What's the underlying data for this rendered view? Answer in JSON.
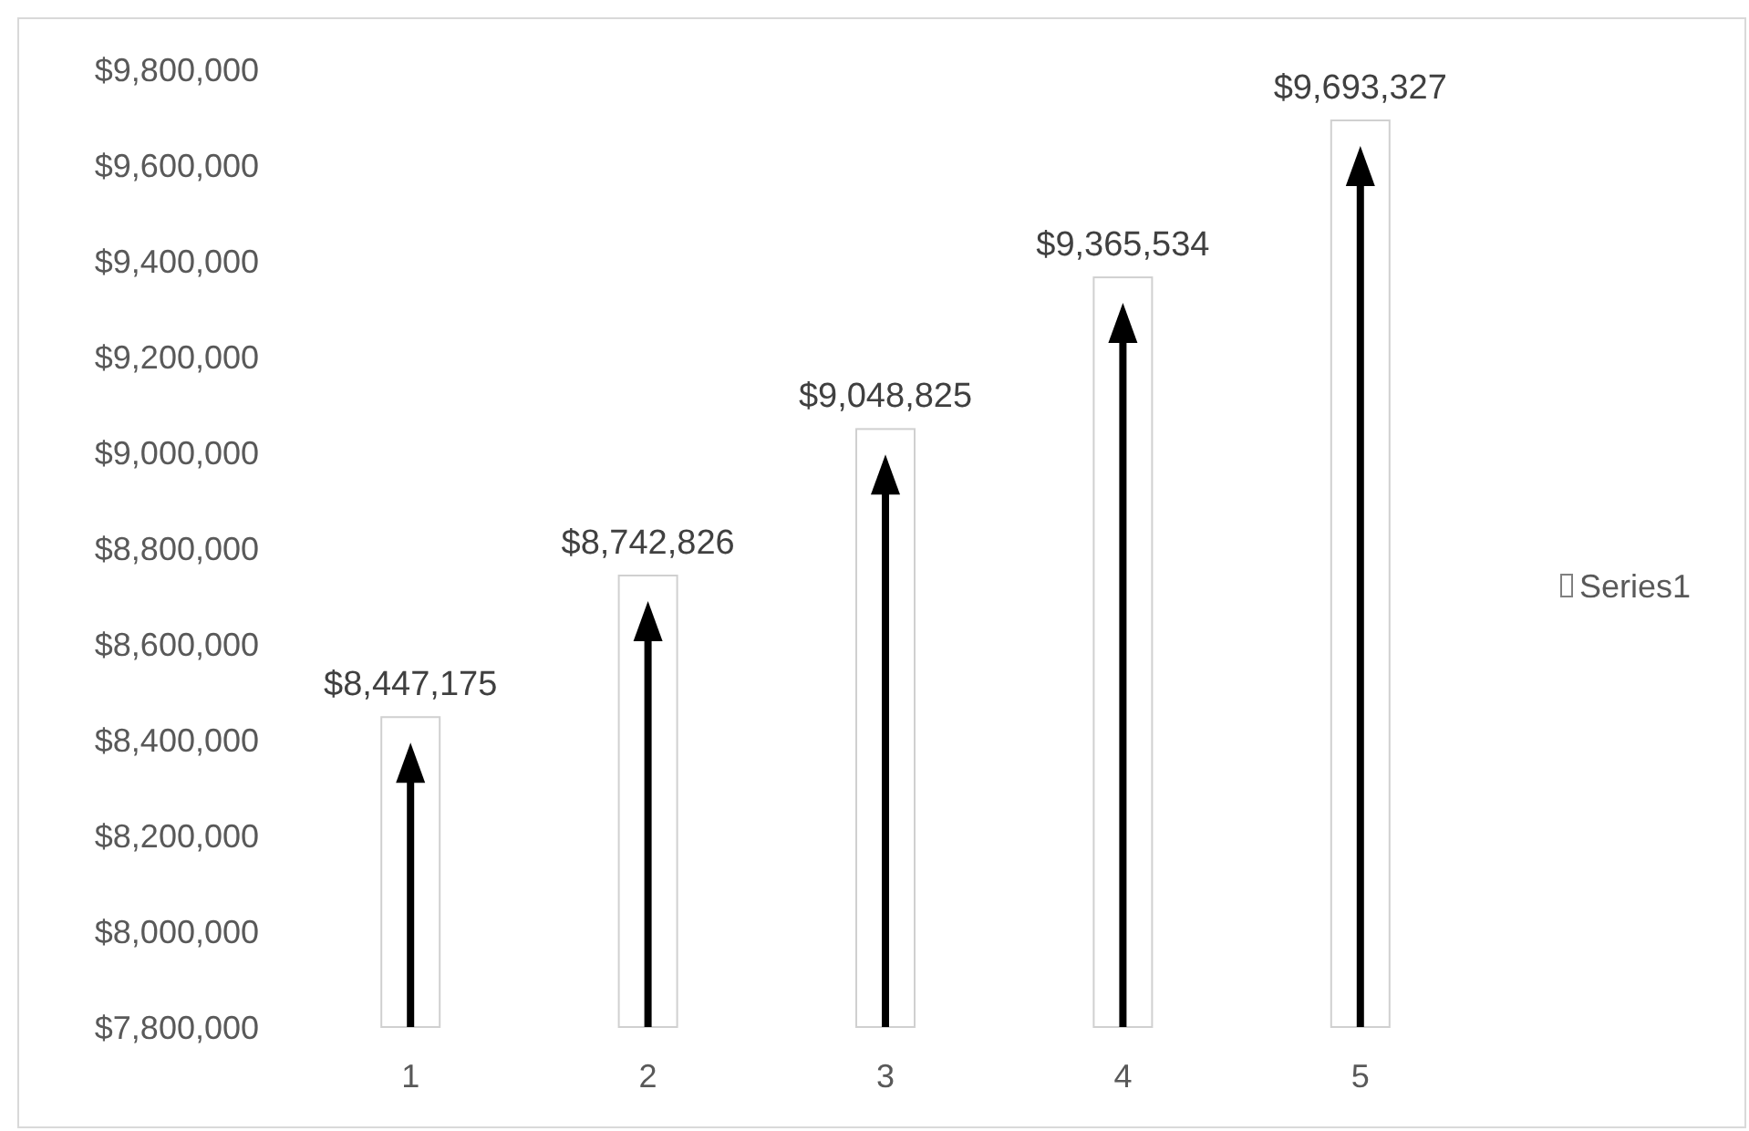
{
  "chart_data": {
    "type": "bar",
    "categories": [
      "1",
      "2",
      "3",
      "4",
      "5"
    ],
    "series": [
      {
        "name": "Series1",
        "color": "#ffffff",
        "values": [
          8447175,
          8742826,
          9048825,
          9365534,
          9693327
        ]
      }
    ],
    "ylim": [
      7800000,
      9800000
    ],
    "yticks": [
      {
        "value": 7800000,
        "label": "$7,800,000"
      },
      {
        "value": 8000000,
        "label": "$8,000,000"
      },
      {
        "value": 8200000,
        "label": "$8,200,000"
      },
      {
        "value": 8400000,
        "label": "$8,400,000"
      },
      {
        "value": 8600000,
        "label": "$8,600,000"
      },
      {
        "value": 8800000,
        "label": "$8,800,000"
      },
      {
        "value": 9000000,
        "label": "$9,000,000"
      },
      {
        "value": 9200000,
        "label": "$9,200,000"
      },
      {
        "value": 9400000,
        "label": "$9,400,000"
      },
      {
        "value": 9600000,
        "label": "$9,600,000"
      },
      {
        "value": 9800000,
        "label": "$9,800,000"
      }
    ],
    "value_labels": [
      "$8,447,175",
      "$8,742,826",
      "$9,048,825",
      "$9,365,534",
      "$9,693,327"
    ],
    "legend": "right"
  }
}
